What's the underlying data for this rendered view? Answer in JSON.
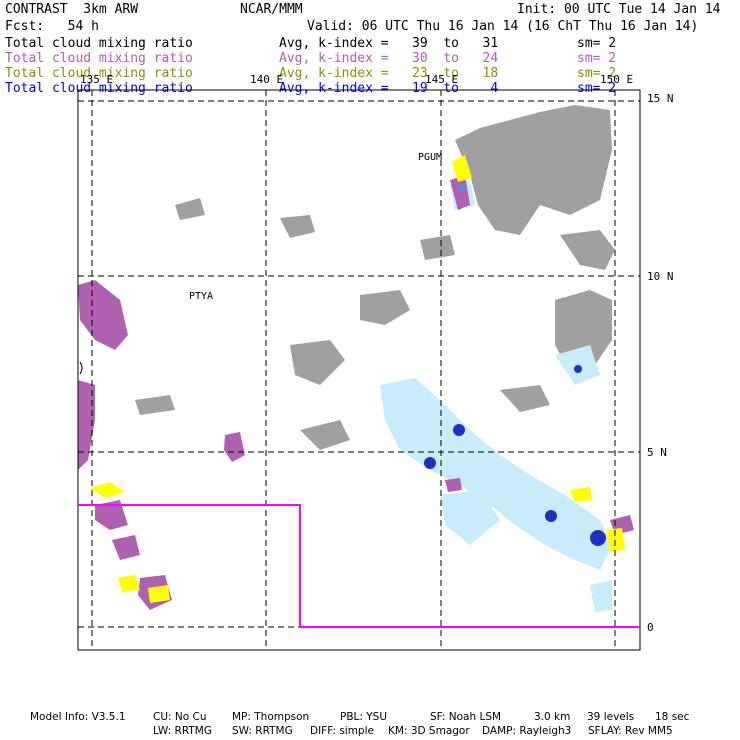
{
  "header": {
    "product": "CONTRAST  3km ARW",
    "org": "NCAR/MMM",
    "init": "Init: 00 UTC Tue 14 Jan 14",
    "fcst": "Fcst:   54 h",
    "valid": "Valid: 06 UTC Thu 16 Jan 14 (16 ChT Thu 16 Jan 14)"
  },
  "legend": [
    {
      "field": "Total cloud mixing ratio",
      "range": "Avg, k-index =   39  to   31",
      "sm": "sm= 2",
      "color": "#000000"
    },
    {
      "field": "Total cloud mixing ratio",
      "range": "Avg, k-index =   30  to   24",
      "sm": "sm= 2",
      "color": "#b060b0"
    },
    {
      "field": "Total cloud mixing ratio",
      "range": "Avg, k-index =   23  to   18",
      "sm": "sm= 2",
      "color": "#909000"
    },
    {
      "field": "Total cloud mixing ratio",
      "range": "Avg, k-index =   19  to    4",
      "sm": "sm= 2",
      "color": "#0000ff"
    }
  ],
  "map": {
    "lon_labels": [
      "135 E",
      "140 E",
      "145 E",
      "150 E"
    ],
    "lat_labels": [
      "15 N",
      "10 N",
      "5 N",
      "0"
    ],
    "stations": [
      "PGUM",
      "PTYA"
    ],
    "colors": {
      "gray": "#a0a0a0",
      "purple": "#b060b0",
      "yellow": "#ffff00",
      "cyan": "#c8ecfa",
      "blue": "#2030c0",
      "magenta": "#ff00ff"
    }
  },
  "footer": {
    "line1": [
      "Model Info: V3.5.1",
      "CU: No Cu",
      "MP: Thompson",
      "PBL: YSU",
      "SF: Noah LSM",
      "3.0 km",
      "39 levels",
      "18 sec"
    ],
    "line2": [
      "LW: RRTMG",
      "SW: RRTMG",
      "DIFF: simple",
      "KM: 3D Smagor",
      "DAMP: Rayleigh3",
      "SFLAY: Rev MM5"
    ]
  }
}
